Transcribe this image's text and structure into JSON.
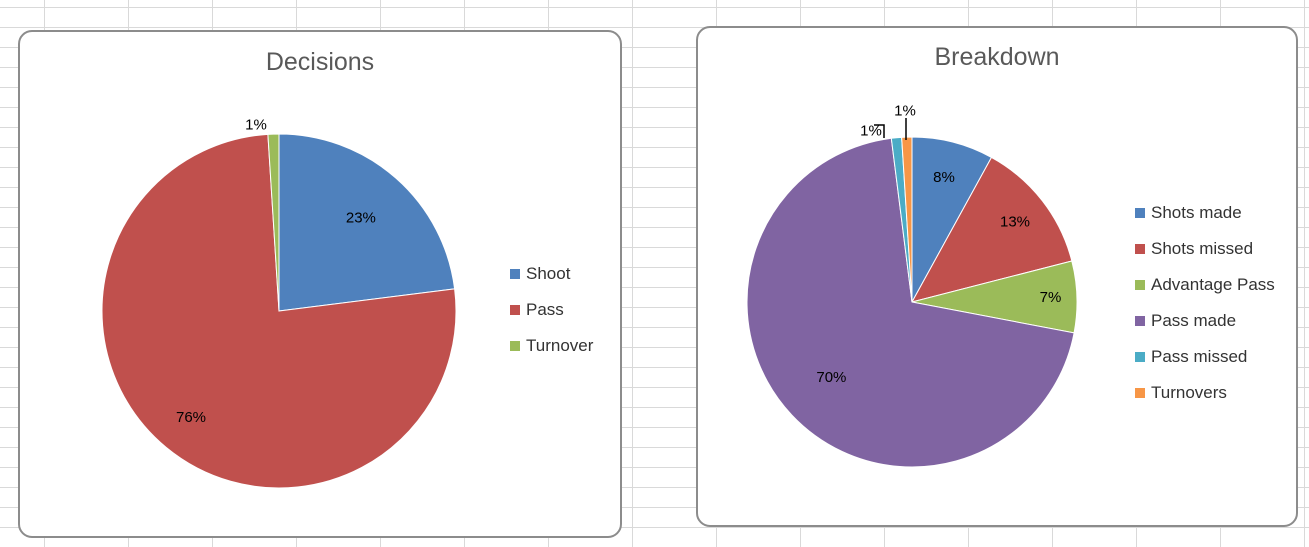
{
  "chart_data": [
    {
      "type": "pie",
      "title": "Decisions",
      "categories": [
        "Shoot",
        "Pass",
        "Turnover"
      ],
      "values": [
        23,
        76,
        1
      ],
      "data_labels": [
        "23%",
        "76%",
        "1%"
      ],
      "colors": [
        "#4f81bd",
        "#c0504d",
        "#9bbb59"
      ],
      "legend": "right"
    },
    {
      "type": "pie",
      "title": "Breakdown",
      "categories": [
        "Shots made",
        "Shots missed",
        "Advantage Pass",
        "Pass made",
        "Pass missed",
        "Turnovers"
      ],
      "values": [
        8,
        13,
        7,
        70,
        1,
        1
      ],
      "data_labels": [
        "8%",
        "13%",
        "7%",
        "70%",
        "1%",
        "1%"
      ],
      "colors": [
        "#4f81bd",
        "#c0504d",
        "#9bbb59",
        "#8064a2",
        "#4bacc6",
        "#f79646"
      ],
      "legend": "right"
    }
  ]
}
